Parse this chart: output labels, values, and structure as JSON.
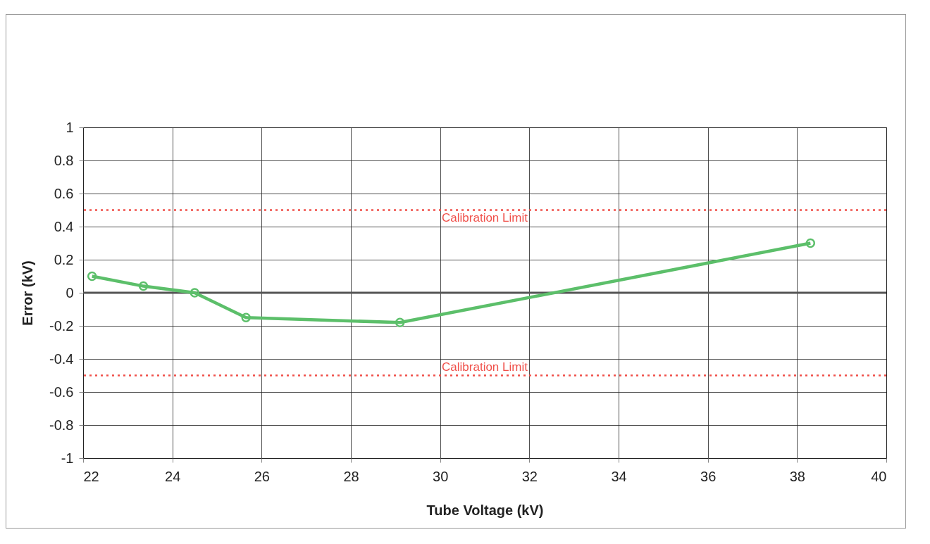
{
  "chart_data": {
    "type": "line",
    "xlabel": "Tube Voltage (kV)",
    "ylabel": "Error (kV)",
    "x": [
      22.2,
      23.35,
      24.5,
      25.65,
      29.1,
      38.3
    ],
    "series": [
      {
        "color": "#5cbf6a",
        "values": [
          0.1,
          0.04,
          0.0,
          -0.15,
          -0.18,
          0.3
        ]
      }
    ],
    "xlim": [
      22,
      40
    ],
    "xticks": [
      22,
      24,
      26,
      28,
      30,
      32,
      34,
      36,
      38,
      40
    ],
    "ylim": [
      -1,
      1
    ],
    "yticks": [
      -1,
      -0.8,
      -0.6,
      -0.4,
      -0.2,
      0,
      0.2,
      0.4,
      0.6,
      0.8,
      1
    ],
    "grid": true,
    "marker": "circle",
    "line_style": "solid",
    "ref_lines": [
      {
        "axis": "y",
        "value": 0.5,
        "label": "Calibration Limit",
        "color": "#f0504a",
        "line_style": "dotted"
      },
      {
        "axis": "y",
        "value": -0.5,
        "label": "Calibration Limit",
        "color": "#f0504a",
        "line_style": "dotted"
      },
      {
        "axis": "y",
        "value": 0,
        "label": null,
        "color": "#555555",
        "line_style": "solid"
      }
    ]
  }
}
